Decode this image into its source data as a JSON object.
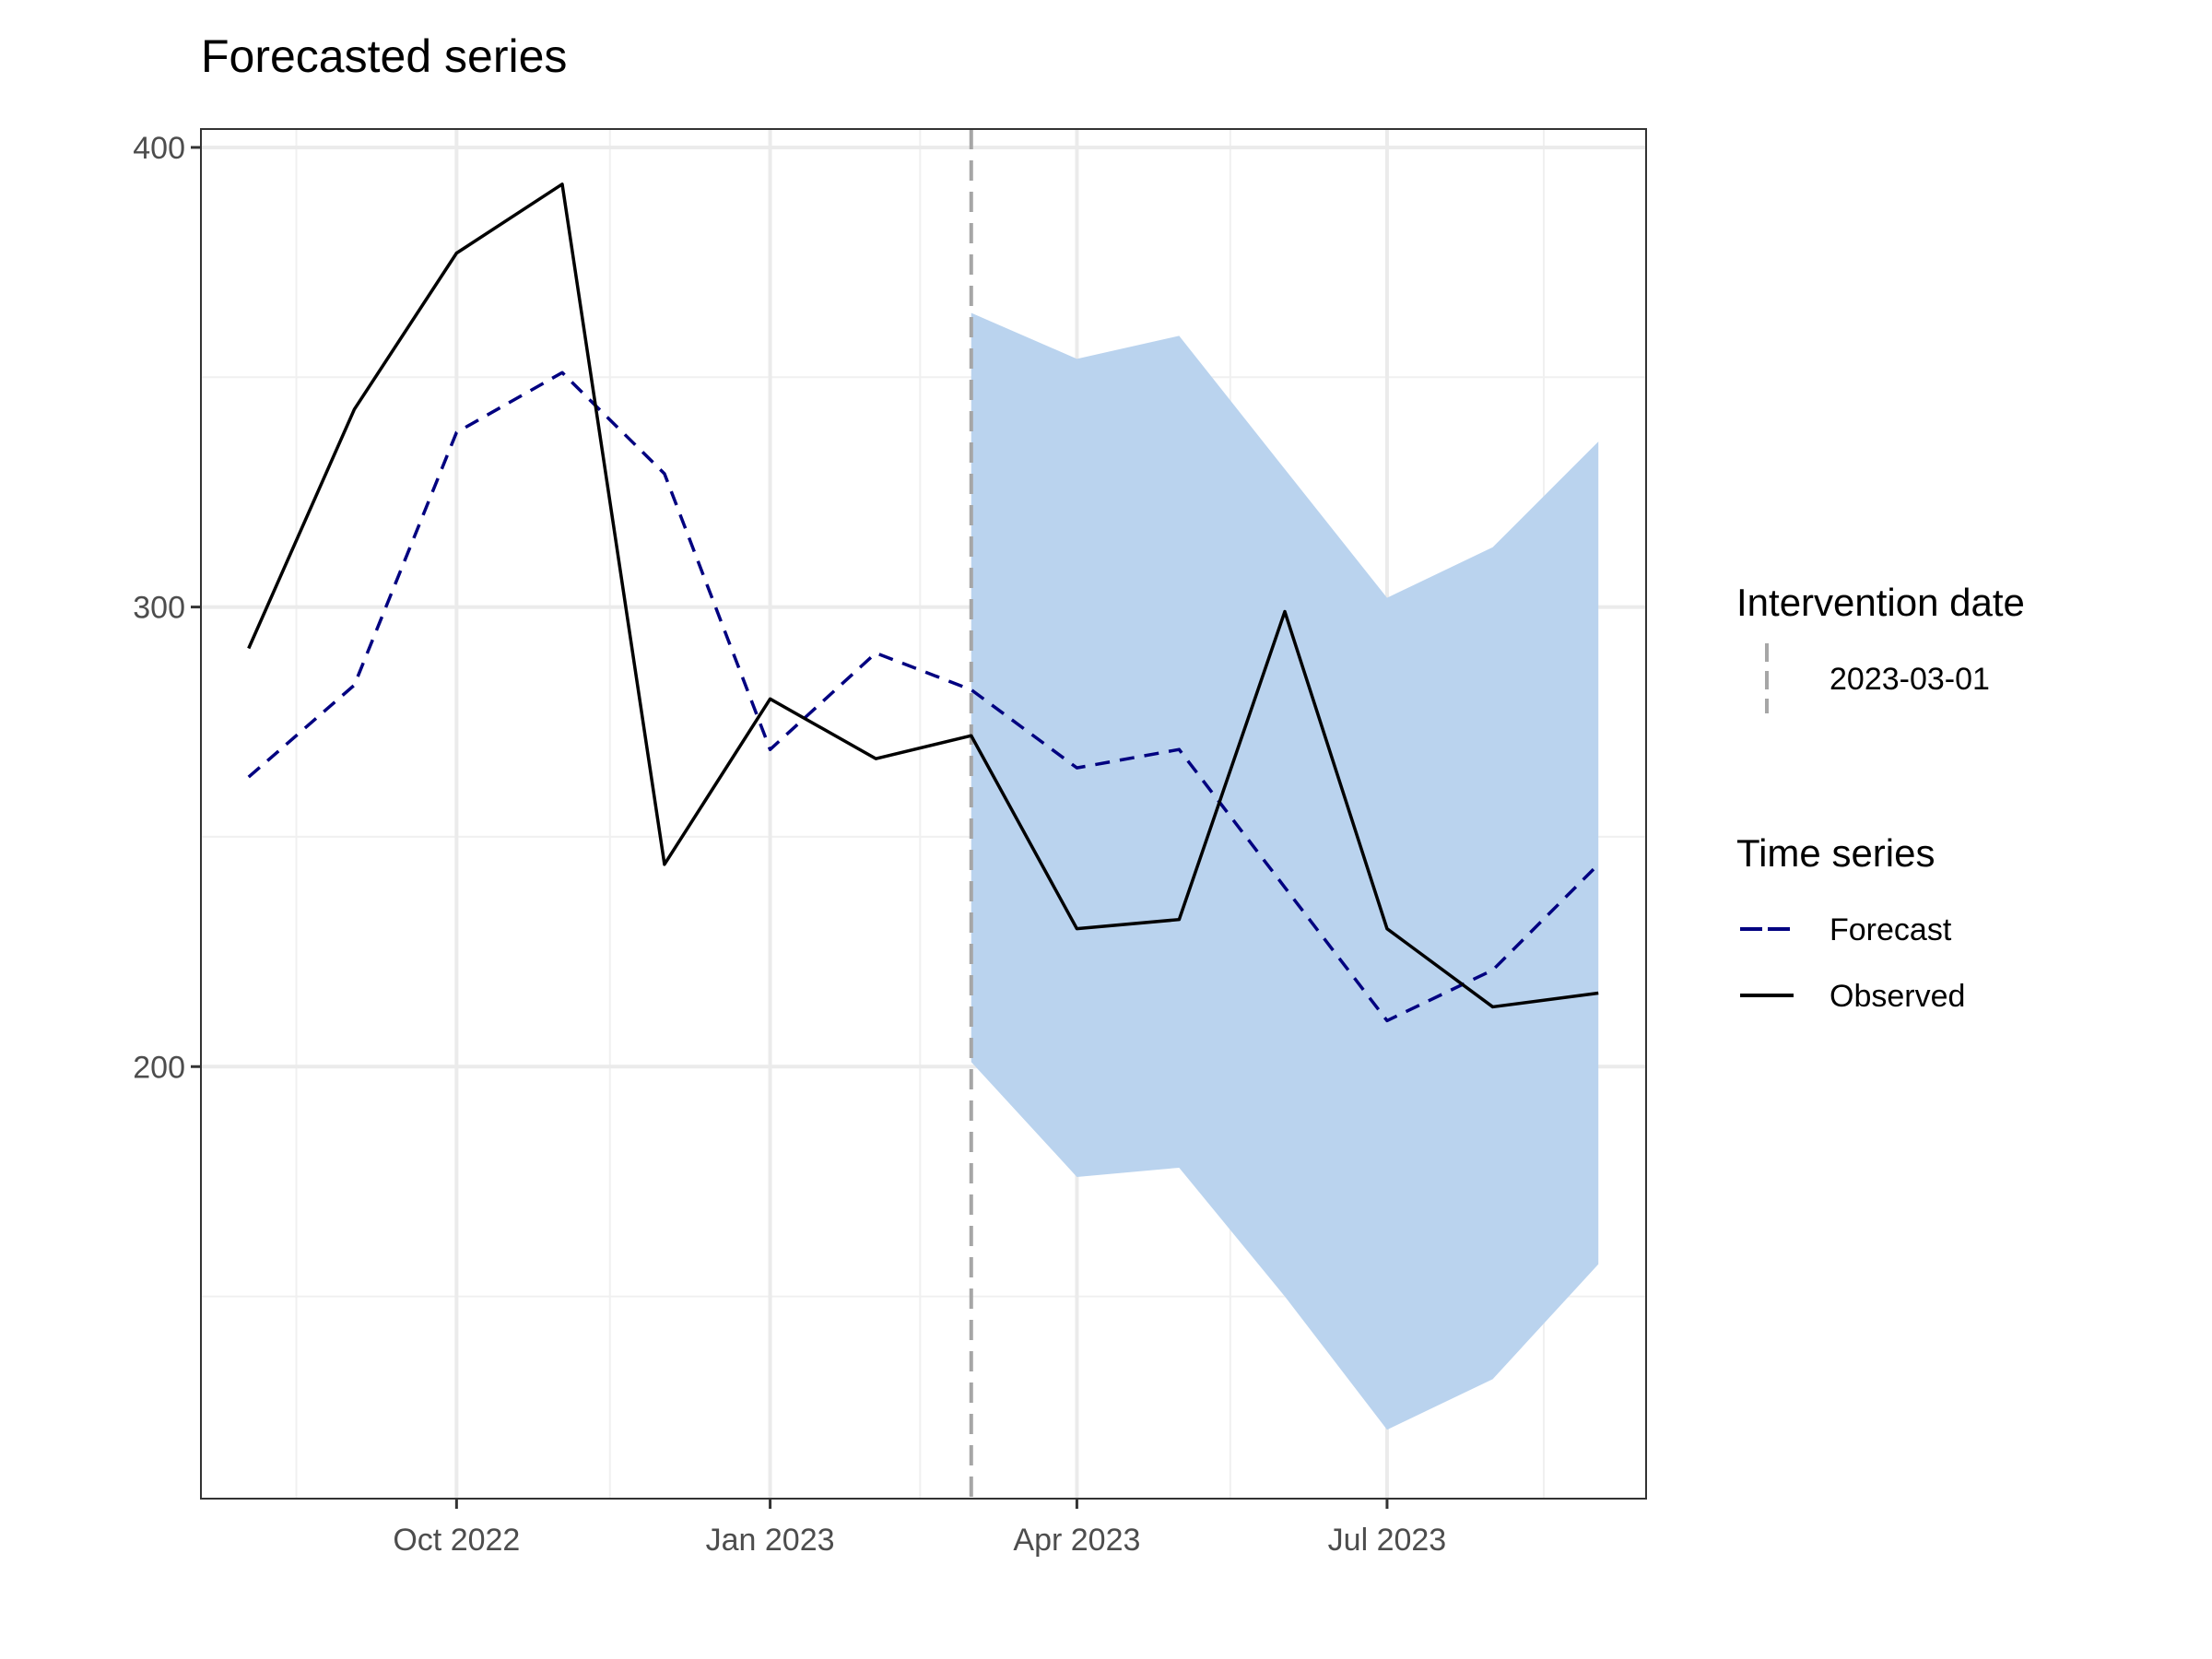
{
  "chart_data": {
    "type": "line",
    "title": "Forecasted series",
    "xlabel": "",
    "ylabel": "",
    "x_range": [
      "2022-07-18",
      "2023-09-15"
    ],
    "y_range": [
      106,
      404
    ],
    "x_ticks": [
      {
        "date": "2022-10-01",
        "label": "Oct 2022"
      },
      {
        "date": "2023-01-01",
        "label": "Jan 2023"
      },
      {
        "date": "2023-04-01",
        "label": "Apr 2023"
      },
      {
        "date": "2023-07-01",
        "label": "Jul 2023"
      }
    ],
    "x_minor_ticks": [
      "2022-08-15",
      "2022-11-15",
      "2023-02-14",
      "2023-05-16",
      "2023-08-16"
    ],
    "y_ticks": [
      200,
      300,
      400
    ],
    "y_minor_ticks": [
      150,
      250,
      350
    ],
    "grid": true,
    "intervention": {
      "date": "2023-03-01",
      "label": "2023-03-01",
      "color": "#a6a6a6"
    },
    "band": {
      "color": "#bad3ee",
      "x": [
        "2023-03-01",
        "2023-04-01",
        "2023-05-01",
        "2023-06-01",
        "2023-07-01",
        "2023-08-01",
        "2023-09-01"
      ],
      "lower": [
        201,
        176,
        178,
        150,
        121,
        132,
        157
      ],
      "upper": [
        364,
        354,
        359,
        330,
        302,
        313,
        336
      ]
    },
    "series": [
      {
        "name": "Forecast",
        "color": "#000080",
        "style": "dashed",
        "x": [
          "2022-08-01",
          "2022-09-01",
          "2022-10-01",
          "2022-11-01",
          "2022-12-01",
          "2023-01-01",
          "2023-02-01",
          "2023-03-01",
          "2023-04-01",
          "2023-05-01",
          "2023-06-01",
          "2023-07-01",
          "2023-08-01",
          "2023-09-01"
        ],
        "values": [
          263,
          283,
          338,
          351,
          329,
          269,
          290,
          282,
          265,
          269,
          239,
          210,
          221,
          244
        ]
      },
      {
        "name": "Observed",
        "color": "#000000",
        "style": "solid",
        "x": [
          "2022-08-01",
          "2022-09-01",
          "2022-10-01",
          "2022-11-01",
          "2022-12-01",
          "2023-01-01",
          "2023-02-01",
          "2023-03-01",
          "2023-04-01",
          "2023-05-01",
          "2023-06-01",
          "2023-07-01",
          "2023-08-01",
          "2023-09-01"
        ],
        "values": [
          291,
          343,
          377,
          392,
          244,
          280,
          267,
          272,
          230,
          232,
          299,
          230,
          213,
          216
        ]
      }
    ],
    "legend": {
      "position": "right",
      "groups": [
        {
          "title": "Intervention date",
          "entries": [
            {
              "label": "2023-03-01",
              "color": "#a6a6a6",
              "style": "dashed-vertical"
            }
          ]
        },
        {
          "title": "Time series",
          "entries": [
            {
              "label": "Forecast",
              "color": "#000080",
              "style": "dashed"
            },
            {
              "label": "Observed",
              "color": "#000000",
              "style": "solid"
            }
          ]
        }
      ]
    }
  }
}
